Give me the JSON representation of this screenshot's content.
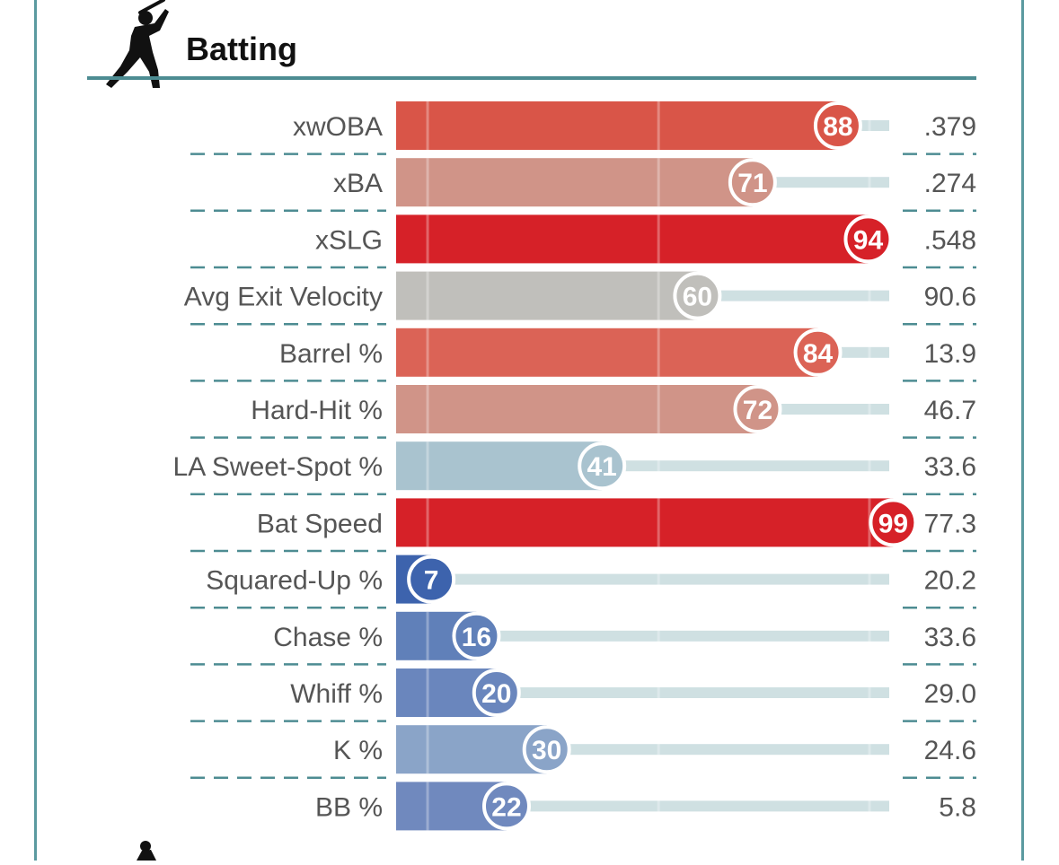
{
  "section": {
    "title": "Batting",
    "icon": "batter-silhouette-icon",
    "next_icon": "pitcher-silhouette-icon"
  },
  "colors": {
    "frame": "#5b9aa0",
    "rule": "#4d8c92",
    "track": "#cfe0e2",
    "label_text": "#555555",
    "high_red": "#d62128",
    "low_blue": "#3d63ad",
    "neutral_gray": "#c0bfbb"
  },
  "chart_data": {
    "type": "bar",
    "orientation": "horizontal",
    "title": "Batting",
    "xlim": [
      0,
      100
    ],
    "categories": [
      "xwOBA",
      "xBA",
      "xSLG",
      "Avg Exit Velocity",
      "Barrel %",
      "Hard-Hit %",
      "LA Sweet-Spot %",
      "Bat Speed",
      "Squared-Up %",
      "Chase %",
      "Whiff %",
      "K %",
      "BB %"
    ],
    "series": [
      {
        "values": [
          88,
          71,
          94,
          60,
          84,
          72,
          41,
          99,
          7,
          16,
          20,
          30,
          22
        ]
      }
    ],
    "stat_values": [
      ".379",
      ".274",
      ".548",
      "90.6",
      "13.9",
      "46.7",
      "33.6",
      "77.3",
      "20.2",
      "33.6",
      "29.0",
      "24.6",
      "5.8"
    ],
    "bar_colors": [
      "#d95548",
      "#d09488",
      "#d62128",
      "#c0bfbb",
      "#db6356",
      "#d09488",
      "#a9c3cf",
      "#d62128",
      "#3d63ad",
      "#6080b9",
      "#6a86bd",
      "#8aa4c8",
      "#7089be"
    ],
    "grid": "faint vertical reference lines"
  }
}
